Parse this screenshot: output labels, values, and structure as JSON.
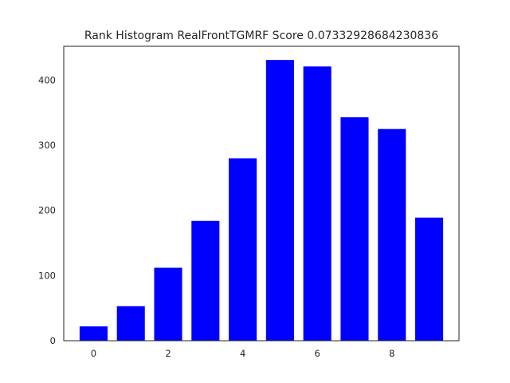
{
  "chart_data": {
    "type": "bar",
    "title": "Rank Histogram RealFrontTGMRF Score 0.07332928684230836",
    "xlabel": "",
    "ylabel": "",
    "x": [
      0,
      1,
      2,
      3,
      4,
      5,
      6,
      7,
      8,
      9
    ],
    "values": [
      22,
      53,
      112,
      184,
      280,
      431,
      421,
      343,
      325,
      189
    ],
    "bar_width": 0.75,
    "bar_color": "#0000ff",
    "xlim": [
      -0.8,
      9.8
    ],
    "ylim": [
      0,
      452
    ],
    "x_ticks": [
      0,
      2,
      4,
      6,
      8
    ],
    "y_ticks": [
      0,
      100,
      200,
      300,
      400
    ],
    "grid": false
  }
}
